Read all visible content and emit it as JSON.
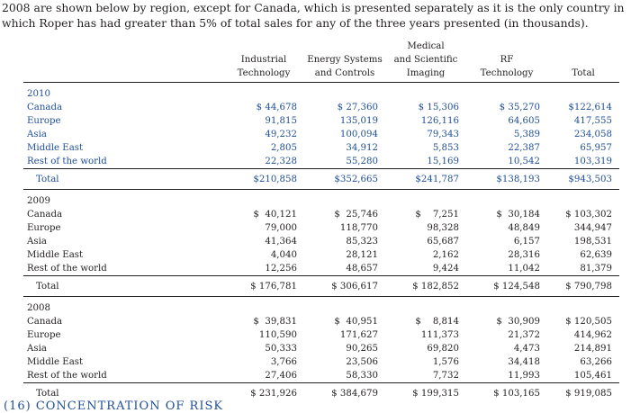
{
  "intro": "2008 are shown below by region, except for Canada, which is presented separately as it is the only country in which Roper has had greater than 5% of total sales for any of the three years presented (in thousands).",
  "columns": [
    {
      "line1": "Industrial",
      "line2": "Technology"
    },
    {
      "line1": "Energy Systems",
      "line2": "and Controls"
    },
    {
      "line0": "Medical",
      "line1": "and Scientific",
      "line2": "Imaging"
    },
    {
      "line1": "RF",
      "line2": "Technology"
    },
    {
      "line2": "Total"
    }
  ],
  "blocks": [
    {
      "year": "2010",
      "rows": [
        {
          "region": "Canada",
          "values": [
            "$ 44,678",
            "$ 27,360",
            "$ 15,306",
            "$ 35,270",
            "$122,614"
          ]
        },
        {
          "region": "Europe",
          "values": [
            "91,815",
            "135,019",
            "126,116",
            "64,605",
            "417,555"
          ]
        },
        {
          "region": "Asia",
          "values": [
            "49,232",
            "100,094",
            "79,343",
            "5,389",
            "234,058"
          ]
        },
        {
          "region": "Middle East",
          "values": [
            "2,805",
            "34,912",
            "5,853",
            "22,387",
            "65,957"
          ]
        },
        {
          "region": "Rest of the world",
          "values": [
            "22,328",
            "55,280",
            "15,169",
            "10,542",
            "103,319"
          ]
        }
      ],
      "total": {
        "label": "Total",
        "values": [
          "$210,858",
          "$352,665",
          "$241,787",
          "$138,193",
          "$943,503"
        ]
      }
    },
    {
      "year": "2009",
      "rows": [
        {
          "region": "Canada",
          "values": [
            "$  40,121",
            "$  25,746",
            "$    7,251",
            "$  30,184",
            "$ 103,302"
          ]
        },
        {
          "region": "Europe",
          "values": [
            "79,000",
            "118,770",
            "98,328",
            "48,849",
            "344,947"
          ]
        },
        {
          "region": "Asia",
          "values": [
            "41,364",
            "85,323",
            "65,687",
            "6,157",
            "198,531"
          ]
        },
        {
          "region": "Middle East",
          "values": [
            "4,040",
            "28,121",
            "2,162",
            "28,316",
            "62,639"
          ]
        },
        {
          "region": "Rest of the world",
          "values": [
            "12,256",
            "48,657",
            "9,424",
            "11,042",
            "81,379"
          ]
        }
      ],
      "total": {
        "label": "Total",
        "values": [
          "$ 176,781",
          "$ 306,617",
          "$ 182,852",
          "$ 124,548",
          "$ 790,798"
        ]
      }
    },
    {
      "year": "2008",
      "rows": [
        {
          "region": "Canada",
          "values": [
            "$  39,831",
            "$  40,951",
            "$    8,814",
            "$  30,909",
            "$ 120,505"
          ]
        },
        {
          "region": "Europe",
          "values": [
            "110,590",
            "171,627",
            "111,373",
            "21,372",
            "414,962"
          ]
        },
        {
          "region": "Asia",
          "values": [
            "50,333",
            "90,265",
            "69,820",
            "4,473",
            "214,891"
          ]
        },
        {
          "region": "Middle East",
          "values": [
            "3,766",
            "23,506",
            "1,576",
            "34,418",
            "63,266"
          ]
        },
        {
          "region": "Rest of the world",
          "values": [
            "27,406",
            "58,330",
            "7,732",
            "11,993",
            "105,461"
          ]
        }
      ],
      "total": {
        "label": "Total",
        "values": [
          "$ 231,926",
          "$ 384,679",
          "$ 199,315",
          "$ 103,165",
          "$ 919,085"
        ]
      }
    }
  ],
  "footer": "(16)  CONCENTRATION OF RISK",
  "colors": {
    "text": "#231f20",
    "accent_blue": "#1f4e99"
  }
}
